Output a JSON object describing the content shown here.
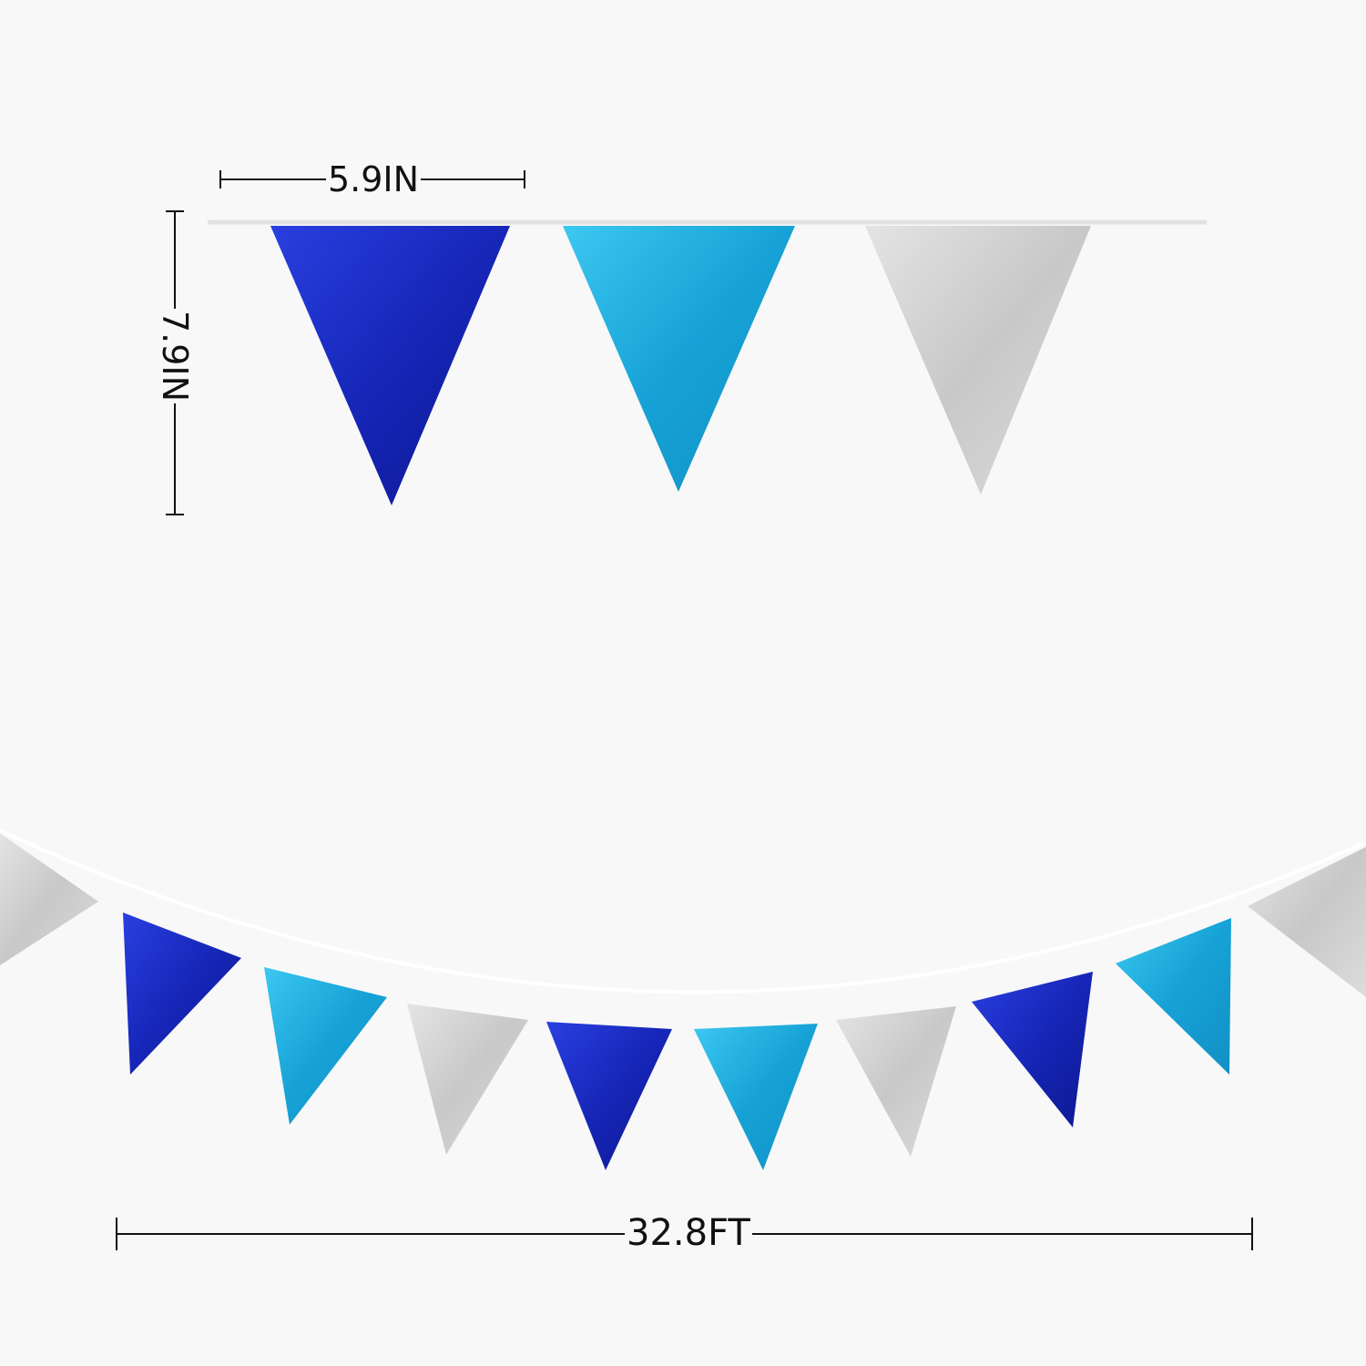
{
  "dimensions": {
    "pennant_width": "5.9IN",
    "pennant_height": "7.9IN",
    "garland_length": "32.8FT"
  },
  "colors": {
    "background": "#f8f8f8",
    "royal_blue": "#1b2ed0",
    "sky_blue": "#1fb0e0",
    "silver": "#d4d4d4"
  },
  "top_pennants": [
    "royal_blue",
    "sky_blue",
    "silver"
  ],
  "garland_pennants": [
    "silver",
    "royal_blue",
    "sky_blue",
    "silver",
    "royal_blue",
    "sky_blue",
    "silver",
    "royal_blue",
    "sky_blue",
    "silver"
  ]
}
